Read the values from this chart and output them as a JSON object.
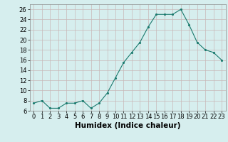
{
  "x": [
    0,
    1,
    2,
    3,
    4,
    5,
    6,
    7,
    8,
    9,
    10,
    11,
    12,
    13,
    14,
    15,
    16,
    17,
    18,
    19,
    20,
    21,
    22,
    23
  ],
  "y": [
    7.5,
    8.0,
    6.5,
    6.5,
    7.5,
    7.5,
    8.0,
    6.5,
    7.5,
    9.5,
    12.5,
    15.5,
    17.5,
    19.5,
    22.5,
    25.0,
    25.0,
    25.0,
    26.0,
    23.0,
    19.5,
    18.0,
    17.5,
    16.0
  ],
  "xlabel": "Humidex (Indice chaleur)",
  "line_color": "#1a7a6e",
  "marker_color": "#1a7a6e",
  "bg_color": "#d6eeee",
  "grid_color": "#c9b8b8",
  "xlim": [
    -0.5,
    23.5
  ],
  "ylim": [
    6,
    27
  ],
  "yticks": [
    6,
    8,
    10,
    12,
    14,
    16,
    18,
    20,
    22,
    24,
    26
  ],
  "xticks": [
    0,
    1,
    2,
    3,
    4,
    5,
    6,
    7,
    8,
    9,
    10,
    11,
    12,
    13,
    14,
    15,
    16,
    17,
    18,
    19,
    20,
    21,
    22,
    23
  ],
  "xtick_labels": [
    "0",
    "1",
    "2",
    "3",
    "4",
    "5",
    "6",
    "7",
    "8",
    "9",
    "10",
    "11",
    "12",
    "13",
    "14",
    "15",
    "16",
    "17",
    "18",
    "19",
    "20",
    "21",
    "22",
    "23"
  ],
  "tick_fontsize": 6,
  "xlabel_fontsize": 7.5
}
